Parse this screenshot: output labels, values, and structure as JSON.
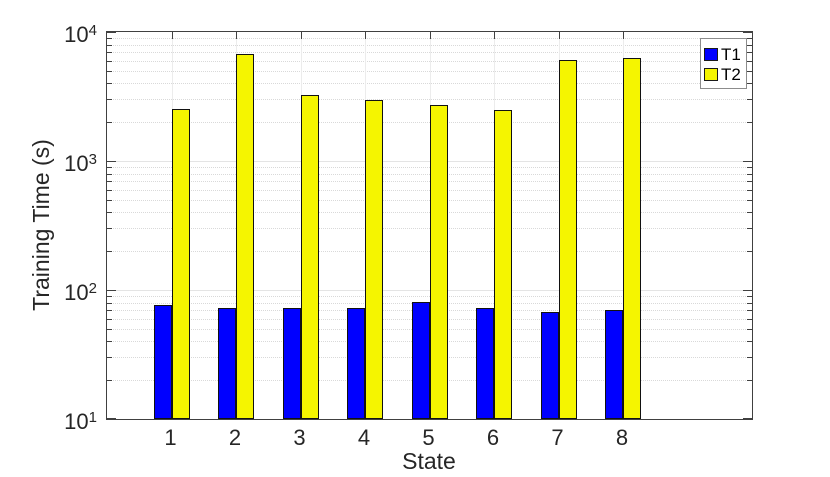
{
  "chart_data": {
    "type": "bar",
    "title": "",
    "xlabel": "State",
    "ylabel": "Training Time (s)",
    "categories": [
      "1",
      "2",
      "3",
      "4",
      "5",
      "6",
      "7",
      "8"
    ],
    "series": [
      {
        "name": "T1",
        "color": "#0000ff",
        "values": [
          77,
          72,
          72,
          72,
          81,
          73,
          67,
          70
        ]
      },
      {
        "name": "T2",
        "color": "#f5f500",
        "values": [
          2550,
          6700,
          3250,
          2950,
          2700,
          2500,
          6100,
          6300
        ]
      }
    ],
    "y_scale": "log",
    "ylim": [
      10,
      10000
    ],
    "xlim": [
      0,
      10
    ],
    "yticks": [
      {
        "base": "10",
        "exp": "4",
        "value": 10000
      },
      {
        "base": "10",
        "exp": "3",
        "value": 1000
      },
      {
        "base": "10",
        "exp": "2",
        "value": 100
      },
      {
        "base": "10",
        "exp": "1",
        "value": 10
      }
    ],
    "grid": "on",
    "minor_grid": "on",
    "legend_position": "northeast",
    "axis_color": "#404040",
    "major_grid_color": "#e4e4e4",
    "minor_grid_color": "#d9d9d9"
  }
}
